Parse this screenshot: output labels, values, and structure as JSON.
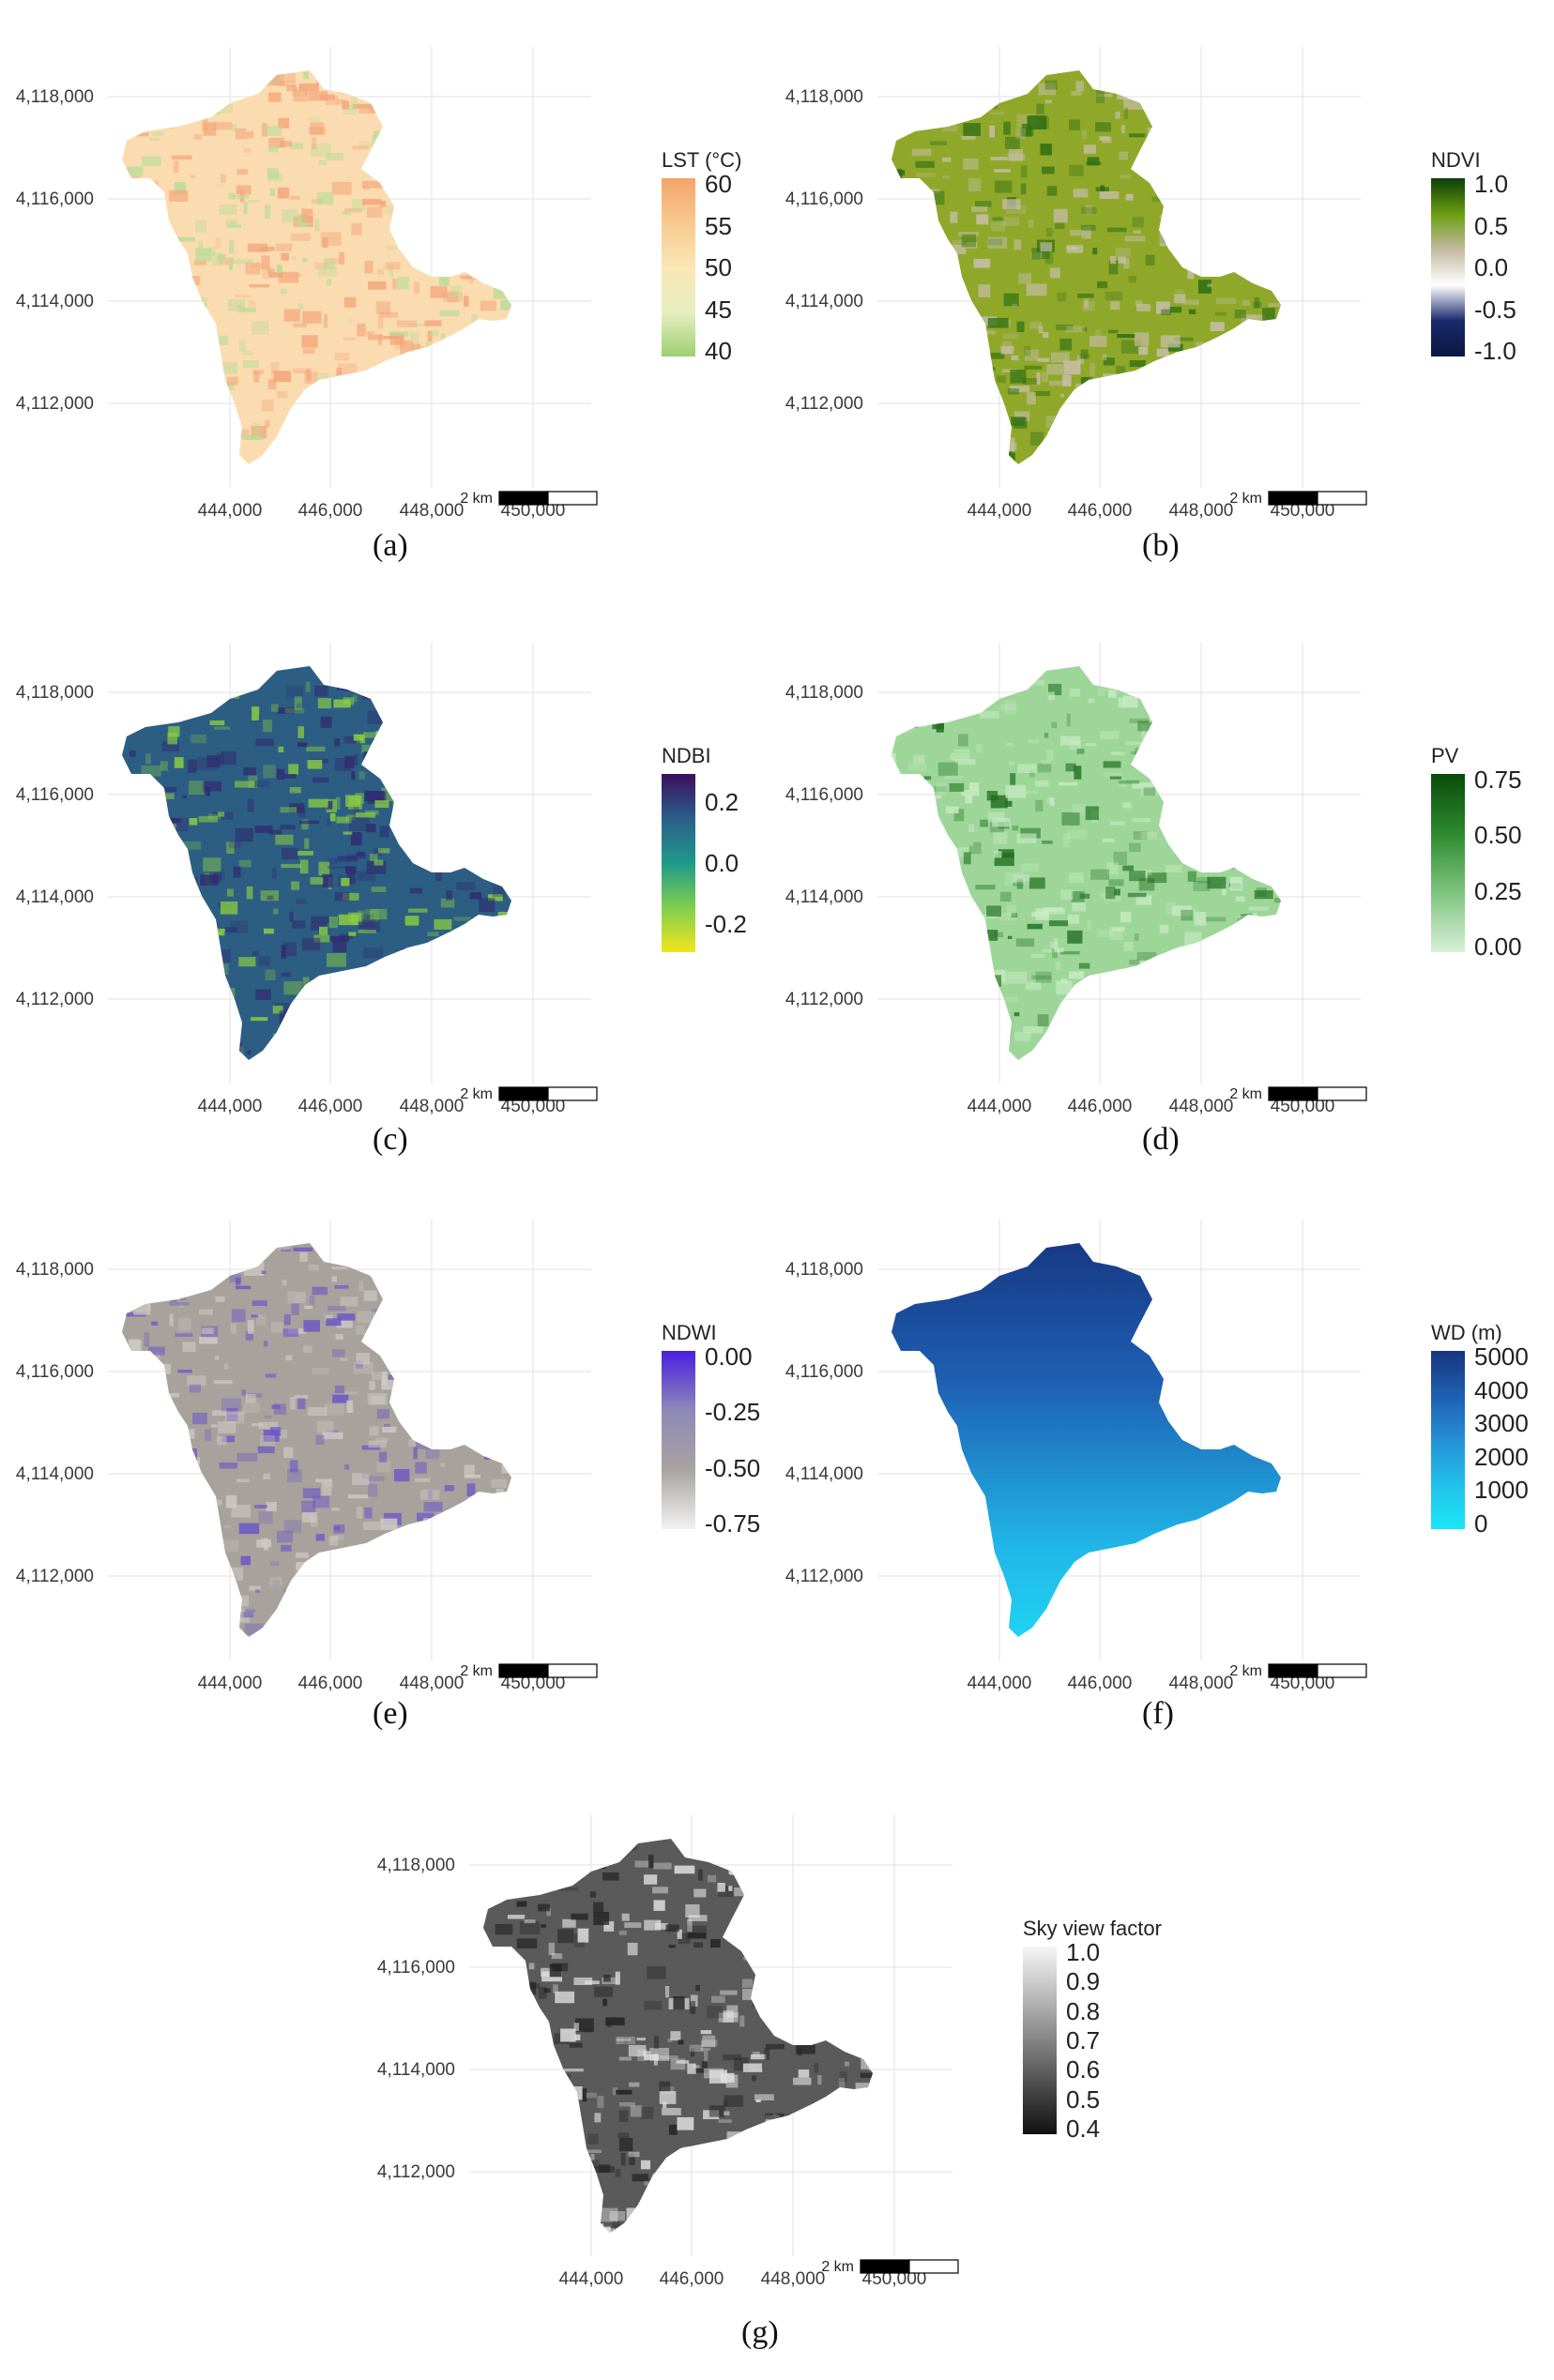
{
  "figure": {
    "panels": [
      {
        "id": "a",
        "caption": "(a)",
        "legend_title": "LST (°C)",
        "legend_labels": [
          "60",
          "55",
          "50",
          "45",
          "40"
        ],
        "legend_colors": [
          "#f4a46a",
          "#f8c98f",
          "#fbe6b5",
          "#e6efc0",
          "#9fcf72"
        ],
        "map_colors": {
          "base": "#fbdcb0",
          "hot": "#f3a57a",
          "cool": "#b9dc97"
        },
        "x_ticks": [
          "444,000",
          "446,000",
          "448,000",
          "450,000"
        ],
        "y_ticks": [
          "4,118,000",
          "4,116,000",
          "4,114,000",
          "4,112,000"
        ],
        "scalebar_label": "2 km"
      },
      {
        "id": "b",
        "caption": "(b)",
        "legend_title": "NDVI",
        "legend_labels": [
          "1.0",
          "0.5",
          "0.0",
          "-0.5",
          "-1.0"
        ],
        "legend_colors": [
          "#0b3d0b",
          "#6b9e10",
          "#c2b9a0",
          "#ffffff",
          "#1a2a6e",
          "#0a1640"
        ],
        "map_colors": {
          "base": "#8fa82a",
          "hot": "#c9bfae",
          "cool": "#2d6e12"
        },
        "x_ticks": [
          "444,000",
          "446,000",
          "448,000",
          "450,000"
        ],
        "y_ticks": [
          "4,118,000",
          "4,116,000",
          "4,114,000",
          "4,112,000"
        ],
        "scalebar_label": "2 km"
      },
      {
        "id": "c",
        "caption": "(c)",
        "legend_title": "NDBI",
        "legend_labels": [
          "0.2",
          "0.0",
          "-0.2"
        ],
        "legend_colors": [
          "#3b0f5c",
          "#2b5f8a",
          "#1f9a8a",
          "#7fcf4f",
          "#f2e51d"
        ],
        "map_colors": {
          "base": "#2c5e84",
          "hot": "#302a6e",
          "cool": "#8ccf3f"
        },
        "x_ticks": [
          "444,000",
          "446,000",
          "448,000",
          "450,000"
        ],
        "y_ticks": [
          "4,118,000",
          "4,116,000",
          "4,114,000",
          "4,112,000"
        ],
        "scalebar_label": "2 km"
      },
      {
        "id": "d",
        "caption": "(d)",
        "legend_title": "PV",
        "legend_labels": [
          "0.75",
          "0.50",
          "0.25",
          "0.00"
        ],
        "legend_colors": [
          "#0a4a0a",
          "#2e8a2e",
          "#7ec47e",
          "#d8f0d8"
        ],
        "map_colors": {
          "base": "#9ed69a",
          "hot": "#c9ebc4",
          "cool": "#1f6e1f"
        },
        "x_ticks": [
          "444,000",
          "446,000",
          "448,000",
          "450,000"
        ],
        "y_ticks": [
          "4,118,000",
          "4,116,000",
          "4,114,000",
          "4,112,000"
        ],
        "scalebar_label": "2 km"
      },
      {
        "id": "e",
        "caption": "(e)",
        "legend_title": "NDWI",
        "legend_labels": [
          "0.00",
          "-0.25",
          "-0.50",
          "-0.75"
        ],
        "legend_colors": [
          "#4a1fe0",
          "#8e88b8",
          "#a8a3a0",
          "#f2f2f2"
        ],
        "map_colors": {
          "base": "#a7a29c",
          "hot": "#cfcac3",
          "cool": "#6a55c8"
        },
        "x_ticks": [
          "444,000",
          "446,000",
          "448,000",
          "450,000"
        ],
        "y_ticks": [
          "4,118,000",
          "4,116,000",
          "4,114,000",
          "4,112,000"
        ],
        "scalebar_label": "2 km"
      },
      {
        "id": "f",
        "caption": "(f)",
        "legend_title": "WD (m)",
        "legend_labels": [
          "5000",
          "4000",
          "3000",
          "2000",
          "1000",
          "0"
        ],
        "legend_colors": [
          "#17357f",
          "#1f5fb0",
          "#2590d6",
          "#22c0ea",
          "#1de6f7"
        ],
        "map_colors": {
          "base": "#1e56ad",
          "hot": "#17357f",
          "cool": "#1ee2f6"
        },
        "x_ticks": [
          "444,000",
          "446,000",
          "448,000",
          "450,000"
        ],
        "y_ticks": [
          "4,118,000",
          "4,116,000",
          "4,114,000",
          "4,112,000"
        ],
        "scalebar_label": "2 km"
      },
      {
        "id": "g",
        "caption": "(g)",
        "legend_title": "Sky view factor",
        "legend_labels": [
          "1.0",
          "0.9",
          "0.8",
          "0.7",
          "0.6",
          "0.5",
          "0.4"
        ],
        "legend_colors": [
          "#f5f5f5",
          "#c9c9c9",
          "#9a9a9a",
          "#6e6e6e",
          "#3e3e3e",
          "#111111"
        ],
        "map_colors": {
          "base": "#5a5a5a",
          "hot": "#e2e2e2",
          "cool": "#222222"
        },
        "x_ticks": [
          "444,000",
          "446,000",
          "448,000",
          "450,000"
        ],
        "y_ticks": [
          "4,118,000",
          "4,116,000",
          "4,114,000",
          "4,112,000"
        ],
        "scalebar_label": "2 km"
      }
    ]
  }
}
